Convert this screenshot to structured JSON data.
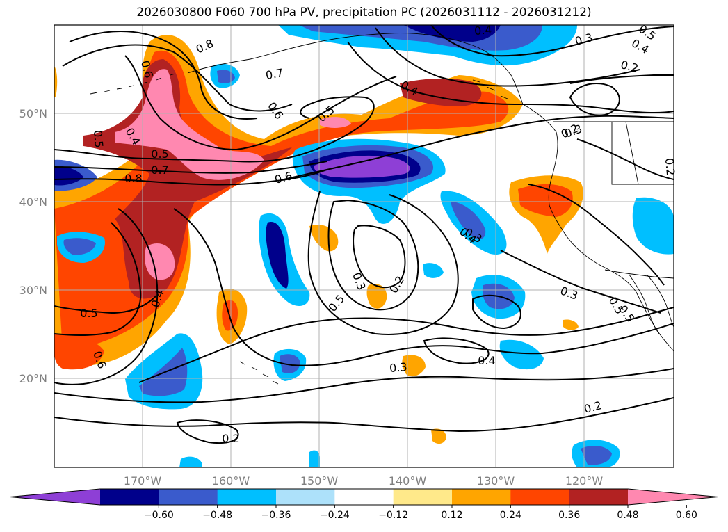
{
  "title": "2026030800 F060 700 hPa PV, precipitation PC (2026031112 - 2026031212)",
  "lat_labels": [
    "50°N",
    "40°N",
    "30°N",
    "20°N"
  ],
  "lon_labels": [
    "170°W",
    "160°W",
    "150°W",
    "140°W",
    "130°W",
    "120°W"
  ],
  "colorbar": {
    "ticks": [
      "−0.60",
      "−0.48",
      "−0.36",
      "−0.24",
      "−0.12",
      "0.12",
      "0.24",
      "0.36",
      "0.48",
      "0.60"
    ],
    "colors": [
      "#8e3fd6",
      "#00008b",
      "#3a5bcc",
      "#00bfff",
      "#ade1fa",
      "#ffffff",
      "#ffe98a",
      "#ffa500",
      "#ff4500",
      "#b22222",
      "#ff88b0"
    ]
  },
  "contour_labels": [
    {
      "text": "0.8"
    },
    {
      "text": "0.6"
    },
    {
      "text": "0.7"
    },
    {
      "text": "0.4"
    },
    {
      "text": "0.3"
    },
    {
      "text": "0.5"
    },
    {
      "text": "0.6"
    },
    {
      "text": "0.5"
    },
    {
      "text": "0.4"
    },
    {
      "text": "0.4"
    },
    {
      "text": "0.5"
    },
    {
      "text": "0.4"
    },
    {
      "text": "0.3"
    },
    {
      "text": "0.2"
    },
    {
      "text": "0.2"
    },
    {
      "text": "0.5"
    },
    {
      "text": "0.7"
    },
    {
      "text": "0.8"
    },
    {
      "text": "0.6"
    },
    {
      "text": "0.4"
    },
    {
      "text": "0.3"
    },
    {
      "text": "0.2"
    },
    {
      "text": "0.5"
    },
    {
      "text": "0.5"
    },
    {
      "text": "0.4"
    },
    {
      "text": "0.3"
    },
    {
      "text": "0.5"
    },
    {
      "text": "0.5"
    },
    {
      "text": "0.6"
    },
    {
      "text": "0.3"
    },
    {
      "text": "0.4"
    },
    {
      "text": "0.2"
    },
    {
      "text": "0.2"
    },
    {
      "text": "0.3"
    },
    {
      "text": "0.2"
    }
  ]
}
